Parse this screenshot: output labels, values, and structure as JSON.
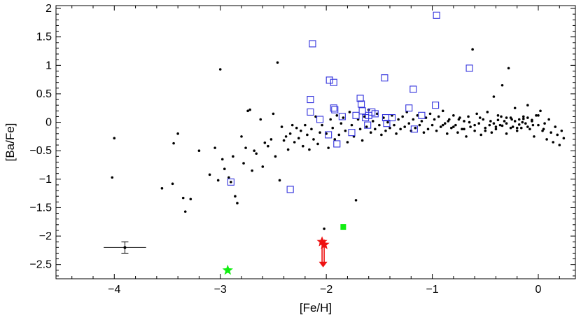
{
  "chart_data": {
    "type": "scatter",
    "xlabel": "[Fe/H]",
    "ylabel": "[Ba/Fe]",
    "xlim": [
      -4.55,
      0.35
    ],
    "ylim": [
      -2.75,
      2.05
    ],
    "x_ticks": [
      -4,
      -3,
      -2,
      -1,
      0
    ],
    "x_tick_labels": [
      "−4",
      "−3",
      "−2",
      "−1",
      "0"
    ],
    "y_ticks": [
      -2.5,
      -2,
      -1.5,
      -1,
      -0.5,
      0,
      0.5,
      1,
      1.5,
      2
    ],
    "y_tick_labels": [
      "−2.5",
      "−2",
      "−1.5",
      "−1",
      "−0.5",
      "0",
      "0.5",
      "1",
      "1.5",
      "2"
    ],
    "grid": false,
    "colors": {
      "dots": "#000000",
      "squares": "#3333dd",
      "red_star": "#ee1111",
      "green": "#11ee11"
    },
    "series": [
      {
        "marker": "dot",
        "points": [
          [
            -4.0,
            -0.28
          ],
          [
            -4.02,
            -0.97
          ],
          [
            -3.55,
            -1.16
          ],
          [
            -3.45,
            -1.08
          ],
          [
            -3.44,
            -0.37
          ],
          [
            -3.4,
            -0.2
          ],
          [
            -3.35,
            -1.33
          ],
          [
            -3.33,
            -1.57
          ],
          [
            -3.28,
            -1.35
          ],
          [
            -3.2,
            -0.5
          ],
          [
            -3.1,
            -0.92
          ],
          [
            -3.05,
            -0.45
          ],
          [
            -3.02,
            -1.02
          ],
          [
            -3.0,
            0.93
          ],
          [
            -2.98,
            -0.65
          ],
          [
            -2.96,
            -0.82
          ],
          [
            -2.92,
            -0.97
          ],
          [
            -2.9,
            -1.05
          ],
          [
            -2.88,
            -0.6
          ],
          [
            -2.86,
            -1.3
          ],
          [
            -2.84,
            -1.42
          ],
          [
            -2.8,
            -0.25
          ],
          [
            -2.78,
            -0.72
          ],
          [
            -2.76,
            -0.45
          ],
          [
            -2.74,
            0.2
          ],
          [
            -2.72,
            0.22
          ],
          [
            -2.7,
            -0.85
          ],
          [
            -2.68,
            -0.5
          ],
          [
            -2.66,
            -0.55
          ],
          [
            -2.62,
            0.05
          ],
          [
            -2.6,
            -0.78
          ],
          [
            -2.58,
            -0.36
          ],
          [
            -2.55,
            -0.42
          ],
          [
            -2.52,
            -0.3
          ],
          [
            -2.5,
            0.15
          ],
          [
            -2.48,
            -0.6
          ],
          [
            -2.46,
            1.05
          ],
          [
            -2.44,
            -1.02
          ],
          [
            -2.42,
            -0.08
          ],
          [
            -2.4,
            -0.32
          ],
          [
            -2.38,
            -0.25
          ],
          [
            -2.36,
            -0.48
          ],
          [
            -2.34,
            -0.2
          ],
          [
            -2.32,
            -0.05
          ],
          [
            -2.3,
            -0.35
          ],
          [
            -2.28,
            -0.1
          ],
          [
            -2.26,
            -0.28
          ],
          [
            -2.24,
            -0.15
          ],
          [
            -2.22,
            -0.42
          ],
          [
            -2.2,
            -0.05
          ],
          [
            -2.18,
            -0.22
          ],
          [
            -2.16,
            -0.48
          ],
          [
            -2.14,
            -0.12
          ],
          [
            -2.12,
            -0.3
          ],
          [
            -2.1,
            0.1
          ],
          [
            -2.08,
            -0.38
          ],
          [
            -2.06,
            -0.18
          ],
          [
            -2.04,
            -0.05
          ],
          [
            -2.02,
            -1.87
          ],
          [
            -2.0,
            -0.2
          ],
          [
            -1.98,
            -0.45
          ],
          [
            -1.96,
            0.05
          ],
          [
            -1.94,
            -0.1
          ],
          [
            -1.92,
            -0.3
          ],
          [
            -1.9,
            0.12
          ],
          [
            -1.88,
            -0.22
          ],
          [
            -1.86,
            -0.02
          ],
          [
            -1.84,
            0.08
          ],
          [
            -1.82,
            -0.15
          ],
          [
            -1.8,
            -0.35
          ],
          [
            -1.78,
            0.18
          ],
          [
            -1.76,
            -0.05
          ],
          [
            -1.74,
            -0.25
          ],
          [
            -1.72,
            -1.37
          ],
          [
            -1.7,
            0.05
          ],
          [
            -1.68,
            -0.12
          ],
          [
            -1.66,
            -0.32
          ],
          [
            -1.64,
            0.1
          ],
          [
            -1.62,
            -0.08
          ],
          [
            -1.6,
            0.22
          ],
          [
            -1.58,
            -0.18
          ],
          [
            -1.56,
            0.02
          ],
          [
            -1.54,
            -0.12
          ],
          [
            -1.52,
            0.15
          ],
          [
            -1.5,
            -0.05
          ],
          [
            -1.48,
            -0.22
          ],
          [
            -1.46,
            0.08
          ],
          [
            -1.44,
            -0.15
          ],
          [
            -1.42,
            0.0
          ],
          [
            -1.4,
            -0.1
          ],
          [
            -1.38,
            0.12
          ],
          [
            -1.36,
            -0.05
          ],
          [
            -1.34,
            -0.2
          ],
          [
            -1.32,
            0.05
          ],
          [
            -1.3,
            -0.12
          ],
          [
            -1.28,
            0.1
          ],
          [
            -1.26,
            -0.08
          ],
          [
            -1.24,
            0.18
          ],
          [
            -1.22,
            -0.02
          ],
          [
            -1.2,
            -0.15
          ],
          [
            -1.18,
            0.05
          ],
          [
            -1.16,
            -0.1
          ],
          [
            -1.14,
            0.12
          ],
          [
            -1.12,
            -0.05
          ],
          [
            -1.1,
            0.02
          ],
          [
            -1.08,
            -0.18
          ],
          [
            -1.06,
            0.08
          ],
          [
            -1.04,
            -0.12
          ],
          [
            -1.02,
            0.15
          ],
          [
            -1.0,
            -0.05
          ],
          [
            -0.98,
            0.05
          ],
          [
            -0.96,
            -0.15
          ],
          [
            -0.94,
            0.1
          ],
          [
            -0.92,
            -0.08
          ],
          [
            -0.9,
            0.2
          ],
          [
            -0.88,
            -0.02
          ],
          [
            -0.86,
            -0.2
          ],
          [
            -0.84,
            0.05
          ],
          [
            -0.82,
            -0.1
          ],
          [
            -0.8,
            0.12
          ],
          [
            -0.78,
            -0.05
          ],
          [
            -0.76,
            -0.18
          ],
          [
            -0.74,
            0.08
          ],
          [
            -0.72,
            -0.12
          ],
          [
            -0.7,
            0.02
          ],
          [
            -0.68,
            -0.25
          ],
          [
            -0.66,
            0.1
          ],
          [
            -0.64,
            -0.08
          ],
          [
            -0.62,
            1.28
          ],
          [
            -0.6,
            -0.15
          ],
          [
            -0.58,
            0.15
          ],
          [
            -0.56,
            -0.02
          ],
          [
            -0.54,
            -0.22
          ],
          [
            -0.52,
            0.05
          ],
          [
            -0.5,
            -0.1
          ],
          [
            -0.48,
            0.18
          ],
          [
            -0.46,
            -0.05
          ],
          [
            -0.44,
            -0.18
          ],
          [
            -0.42,
            0.45
          ],
          [
            -0.4,
            -0.12
          ],
          [
            -0.38,
            0.12
          ],
          [
            -0.36,
            -0.05
          ],
          [
            -0.34,
            0.65
          ],
          [
            -0.32,
            0.02
          ],
          [
            -0.3,
            -0.2
          ],
          [
            -0.28,
            0.95
          ],
          [
            -0.26,
            0.08
          ],
          [
            -0.24,
            -0.08
          ],
          [
            -0.22,
            0.25
          ],
          [
            -0.2,
            -0.15
          ],
          [
            -0.18,
            0.05
          ],
          [
            -0.16,
            -0.1
          ],
          [
            -0.14,
            0.1
          ],
          [
            -0.12,
            -0.02
          ],
          [
            -0.1,
            0.3
          ],
          [
            -0.08,
            -0.12
          ],
          [
            -0.06,
            0.02
          ],
          [
            -0.04,
            -0.25
          ],
          [
            -0.02,
            0.12
          ],
          [
            0.0,
            -0.05
          ],
          [
            0.02,
            0.2
          ],
          [
            0.04,
            -0.15
          ],
          [
            0.06,
            -0.02
          ],
          [
            0.08,
            -0.3
          ],
          [
            0.1,
            0.05
          ],
          [
            0.12,
            -0.18
          ],
          [
            0.14,
            -0.35
          ],
          [
            0.16,
            -0.08
          ],
          [
            0.18,
            -0.22
          ],
          [
            0.2,
            -0.4
          ],
          [
            0.22,
            -0.15
          ],
          [
            0.24,
            -0.28
          ],
          [
            -0.9,
            -0.05
          ],
          [
            -0.85,
            0.02
          ],
          [
            -0.8,
            -0.08
          ],
          [
            -0.75,
            0.05
          ],
          [
            -0.7,
            -0.12
          ],
          [
            -0.65,
            0.0
          ],
          [
            -0.6,
            -0.05
          ],
          [
            -0.55,
            0.08
          ],
          [
            -0.5,
            -0.15
          ],
          [
            -0.45,
            0.02
          ],
          [
            -0.4,
            -0.08
          ],
          [
            -0.35,
            0.1
          ],
          [
            -0.3,
            -0.02
          ],
          [
            -0.25,
            0.05
          ],
          [
            -0.2,
            -0.1
          ],
          [
            -0.15,
            0.0
          ],
          [
            -0.1,
            0.08
          ],
          [
            -0.05,
            -0.05
          ],
          [
            0.0,
            0.12
          ],
          [
            0.05,
            -0.12
          ],
          [
            -0.42,
            -0.02
          ],
          [
            -0.38,
            0.04
          ],
          [
            -0.34,
            -0.06
          ],
          [
            -0.3,
            0.08
          ],
          [
            -0.26,
            -0.1
          ],
          [
            -0.22,
            0.02
          ],
          [
            -0.18,
            -0.04
          ],
          [
            -0.14,
            0.06
          ],
          [
            -0.1,
            -0.08
          ],
          [
            -0.06,
            0.04
          ]
        ]
      },
      {
        "marker": "open-square",
        "points": [
          [
            -2.9,
            -1.05
          ],
          [
            -2.34,
            -1.18
          ],
          [
            -2.15,
            0.4
          ],
          [
            -2.15,
            0.18
          ],
          [
            -2.13,
            1.38
          ],
          [
            -2.06,
            0.05
          ],
          [
            -1.98,
            -0.22
          ],
          [
            -1.97,
            0.74
          ],
          [
            -1.93,
            0.7
          ],
          [
            -1.93,
            0.25
          ],
          [
            -1.92,
            0.22
          ],
          [
            -1.9,
            -0.38
          ],
          [
            -1.85,
            0.1
          ],
          [
            -1.76,
            -0.18
          ],
          [
            -1.72,
            0.12
          ],
          [
            -1.68,
            0.42
          ],
          [
            -1.67,
            0.32
          ],
          [
            -1.66,
            0.2
          ],
          [
            -1.63,
            0.08
          ],
          [
            -1.61,
            -0.05
          ],
          [
            -1.6,
            0.12
          ],
          [
            -1.57,
            0.18
          ],
          [
            -1.54,
            0.15
          ],
          [
            -1.45,
            0.78
          ],
          [
            -1.44,
            0.08
          ],
          [
            -1.43,
            -0.02
          ],
          [
            -1.38,
            0.08
          ],
          [
            -1.22,
            0.25
          ],
          [
            -1.18,
            0.58
          ],
          [
            -1.17,
            -0.12
          ],
          [
            -1.1,
            0.12
          ],
          [
            -0.97,
            0.3
          ],
          [
            -0.96,
            1.88
          ],
          [
            -0.65,
            0.95
          ]
        ]
      },
      {
        "marker": "filled-square",
        "points": [
          [
            -1.84,
            -1.84
          ]
        ]
      },
      {
        "marker": "star",
        "points": [
          [
            -2.04,
            -2.1
          ],
          [
            -2.02,
            -2.15
          ]
        ]
      },
      {
        "marker": "green-star",
        "points": [
          [
            -2.93,
            -2.6
          ]
        ]
      }
    ],
    "upper_limits": [
      {
        "x": -2.03,
        "y_from": -2.12,
        "y_to": -2.55
      }
    ],
    "error_bar": {
      "x": -3.9,
      "y": -2.2,
      "x_err": 0.2,
      "y_err": 0.1
    }
  }
}
